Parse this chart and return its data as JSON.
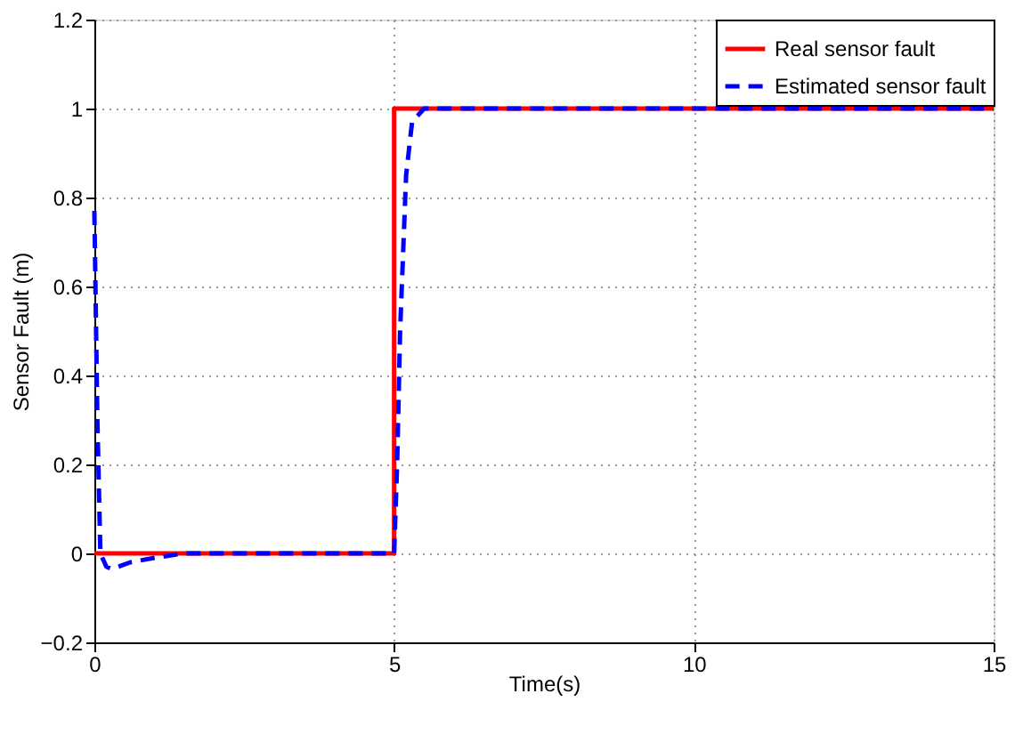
{
  "chart_data": {
    "type": "line",
    "xlabel": "Time(s)",
    "ylabel": "Sensor Fault (m)",
    "xlim": [
      0,
      15
    ],
    "xticks": [
      0,
      5,
      10,
      15
    ],
    "ylim": [
      -0.2,
      1.2
    ],
    "yticks": [
      -0.2,
      0,
      0.2,
      0.4,
      0.6,
      0.8,
      1,
      1.2
    ],
    "grid": true,
    "legend": "top right",
    "marker": "none",
    "series": [
      {
        "name": "Real sensor fault",
        "color": "#ff0000",
        "line_style": "solid",
        "x": [
          0,
          5,
          5,
          15
        ],
        "values": [
          0,
          0,
          1,
          1
        ]
      },
      {
        "name": "Estimated sensor fault",
        "color": "#0000ff",
        "line_style": "dashed",
        "x": [
          0,
          0.05,
          0.1,
          0.2,
          0.3,
          0.6,
          1,
          1.5,
          5,
          5.05,
          5.1,
          5.2,
          5.3,
          5.5,
          15
        ],
        "values": [
          0.77,
          0.3,
          0,
          -0.03,
          -0.035,
          -0.02,
          -0.01,
          0,
          0,
          0.2,
          0.5,
          0.85,
          0.97,
          1,
          1
        ]
      }
    ]
  }
}
